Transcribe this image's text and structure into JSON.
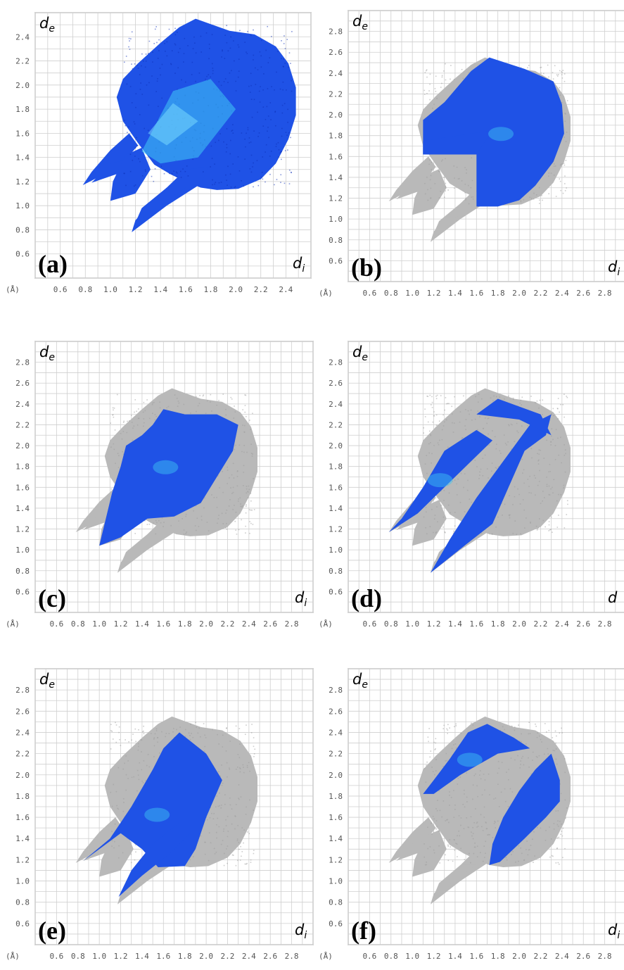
{
  "chart_data": [
    {
      "type": "scatter",
      "panel_label": "(a)",
      "xlabel": "d",
      "xlabel_sub": "i",
      "ylabel": "d",
      "ylabel_sub": "e",
      "unit": "(Å)",
      "xlim": [
        0.4,
        2.6
      ],
      "ylim": [
        0.4,
        2.6
      ],
      "x_ticks": [
        "0.6",
        "0.8",
        "1.0",
        "1.2",
        "1.4",
        "1.6",
        "1.8",
        "2.0",
        "2.2",
        "2.4"
      ],
      "y_ticks": [
        "0.6",
        "0.8",
        "1.0",
        "1.2",
        "1.4",
        "1.6",
        "1.8",
        "2.0",
        "2.2",
        "2.4"
      ],
      "highlight_region": "full",
      "colors": {
        "highlight": "#1f52e6",
        "dense": "#3fc8f5",
        "background": "#b9b9b9"
      },
      "grid": true
    },
    {
      "type": "scatter",
      "panel_label": "(b)",
      "xlabel": "d",
      "xlabel_sub": "i",
      "ylabel": "d",
      "ylabel_sub": "e",
      "unit": "(Å)",
      "xlim": [
        0.4,
        3.0
      ],
      "ylim": [
        0.4,
        3.0
      ],
      "x_ticks": [
        "0.6",
        "0.8",
        "1.0",
        "1.2",
        "1.4",
        "1.6",
        "1.8",
        "2.0",
        "2.2",
        "2.4",
        "2.6",
        "2.8"
      ],
      "y_ticks": [
        "0.6",
        "0.8",
        "1.0",
        "1.2",
        "1.4",
        "1.6",
        "1.8",
        "2.0",
        "2.2",
        "2.4",
        "2.6",
        "2.8"
      ],
      "highlight_region": "upper-right block",
      "colors": {
        "highlight": "#1f52e6",
        "dense": "#3fc8f5",
        "background": "#b9b9b9"
      },
      "grid": true
    },
    {
      "type": "scatter",
      "panel_label": "(c)",
      "xlabel": "d",
      "xlabel_sub": "i",
      "ylabel": "d",
      "ylabel_sub": "e",
      "unit": "(Å)",
      "xlim": [
        0.4,
        3.0
      ],
      "ylim": [
        0.4,
        3.0
      ],
      "x_ticks": [
        "0.6",
        "0.8",
        "1.0",
        "1.2",
        "1.4",
        "1.6",
        "1.8",
        "2.0",
        "2.2",
        "2.4",
        "2.6",
        "2.8"
      ],
      "y_ticks": [
        "0.6",
        "0.8",
        "1.0",
        "1.2",
        "1.4",
        "1.6",
        "1.8",
        "2.0",
        "2.2",
        "2.4",
        "2.6",
        "2.8"
      ],
      "highlight_region": "central blob",
      "colors": {
        "highlight": "#1f52e6",
        "dense": "#3fc8f5",
        "background": "#b9b9b9"
      },
      "grid": true
    },
    {
      "type": "scatter",
      "panel_label": "(d)",
      "xlabel": "d",
      "xlabel_sub": "",
      "ylabel": "d",
      "ylabel_sub": "e",
      "unit": "(Å)",
      "xlim": [
        0.4,
        3.0
      ],
      "ylim": [
        0.4,
        3.0
      ],
      "x_ticks": [
        "0.6",
        "0.8",
        "1.0",
        "1.2",
        "1.4",
        "1.6",
        "1.8",
        "2.0",
        "2.2",
        "2.4",
        "2.6",
        "2.8"
      ],
      "y_ticks": [
        "0.6",
        "0.8",
        "1.0",
        "1.2",
        "1.4",
        "1.6",
        "1.8",
        "2.0",
        "2.2",
        "2.4",
        "2.6",
        "2.8"
      ],
      "highlight_region": "two spikes",
      "colors": {
        "highlight": "#1f52e6",
        "dense": "#3fc8f5",
        "background": "#b9b9b9"
      },
      "grid": true
    },
    {
      "type": "scatter",
      "panel_label": "(e)",
      "xlabel": "d",
      "xlabel_sub": "i",
      "ylabel": "d",
      "ylabel_sub": "e",
      "unit": "(Å)",
      "xlim": [
        0.4,
        3.0
      ],
      "ylim": [
        0.4,
        3.0
      ],
      "x_ticks": [
        "0.6",
        "0.8",
        "1.0",
        "1.2",
        "1.4",
        "1.6",
        "1.8",
        "2.0",
        "2.2",
        "2.4",
        "2.6",
        "2.8"
      ],
      "y_ticks": [
        "0.6",
        "0.8",
        "1.0",
        "1.2",
        "1.4",
        "1.6",
        "1.8",
        "2.0",
        "2.2",
        "2.4",
        "2.6",
        "2.8"
      ],
      "highlight_region": "spikes and center",
      "colors": {
        "highlight": "#1f52e6",
        "dense": "#3fc8f5",
        "background": "#b9b9b9"
      },
      "grid": true
    },
    {
      "type": "scatter",
      "panel_label": "(f)",
      "xlabel": "d",
      "xlabel_sub": "i",
      "ylabel": "d",
      "ylabel_sub": "e",
      "unit": "(Å)",
      "xlim": [
        0.4,
        3.0
      ],
      "ylim": [
        0.4,
        3.0
      ],
      "x_ticks": [
        "0.6",
        "0.8",
        "1.0",
        "1.2",
        "1.4",
        "1.6",
        "1.8",
        "2.0",
        "2.2",
        "2.4",
        "2.6",
        "2.8"
      ],
      "y_ticks": [
        "0.6",
        "0.8",
        "1.0",
        "1.2",
        "1.4",
        "1.6",
        "1.8",
        "2.0",
        "2.2",
        "2.4",
        "2.6",
        "2.8"
      ],
      "highlight_region": "wings",
      "colors": {
        "highlight": "#1f52e6",
        "dense": "#3fc8f5",
        "background": "#b9b9b9"
      },
      "grid": true
    }
  ]
}
